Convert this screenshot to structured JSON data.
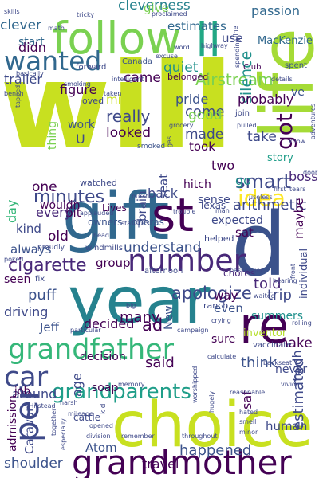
{
  "words": [
    {
      "text": "will",
      "color": "#c8e020",
      "weight": "bold"
    },
    {
      "text": "choice",
      "color": "#c8e020",
      "weight": "normal"
    },
    {
      "text": "gift",
      "color": "#31688e",
      "weight": "normal"
    },
    {
      "text": "year",
      "color": "#26828e",
      "weight": "normal"
    },
    {
      "text": "d",
      "color": "#3b528b",
      "weight": "normal"
    },
    {
      "text": "st",
      "color": "#440154",
      "weight": "normal"
    },
    {
      "text": "life",
      "color": "#a5db36",
      "weight": "normal"
    },
    {
      "text": "re",
      "color": "#440154",
      "weight": "normal"
    },
    {
      "text": "follow",
      "color": "#7ad151",
      "weight": "normal"
    },
    {
      "text": "number",
      "color": "#482878",
      "weight": "normal"
    },
    {
      "text": "grandmother",
      "color": "#440154",
      "weight": "normal"
    },
    {
      "text": "grandfather",
      "color": "#35b779",
      "weight": "normal"
    },
    {
      "text": "wanted",
      "color": "#31688e",
      "weight": "normal"
    },
    {
      "text": "car",
      "color": "#3e4989",
      "weight": "normal"
    },
    {
      "text": "per",
      "color": "#3e4989",
      "weight": "normal"
    },
    {
      "text": "ll",
      "color": "#22a884",
      "weight": "normal"
    },
    {
      "text": "idea",
      "color": "#fde725",
      "weight": "normal"
    },
    {
      "text": "grandparents",
      "color": "#1f9e89",
      "weight": "normal"
    },
    {
      "text": "smart",
      "color": "#3e4989",
      "weight": "normal"
    },
    {
      "text": "cigarette",
      "color": "#482878",
      "weight": "normal"
    },
    {
      "text": "Airstream",
      "color": "#7ad151",
      "weight": "normal"
    },
    {
      "text": "minutes",
      "color": "#3e4989",
      "weight": "normal"
    },
    {
      "text": "apologize",
      "color": "#3e4989",
      "weight": "normal"
    },
    {
      "text": "clever",
      "color": "#31688e",
      "weight": "normal"
    },
    {
      "text": "cleverness",
      "color": "#26828e",
      "weight": "normal"
    },
    {
      "text": "estimates",
      "color": "#31688e",
      "weight": "normal"
    },
    {
      "text": "passion",
      "color": "#31688e",
      "weight": "normal"
    },
    {
      "text": "MacKenzie",
      "color": "#31688e",
      "weight": "normal"
    },
    {
      "text": "didn",
      "color": "#440154",
      "weight": "normal"
    },
    {
      "text": "start",
      "color": "#31688e",
      "weight": "normal"
    },
    {
      "text": "trailer",
      "color": "#3e4989",
      "weight": "normal"
    },
    {
      "text": "quiet",
      "color": "#21918c",
      "weight": "normal"
    },
    {
      "text": "figure",
      "color": "#440154",
      "weight": "normal"
    },
    {
      "text": "came",
      "color": "#440154",
      "weight": "normal"
    },
    {
      "text": "use",
      "color": "#3e4989",
      "weight": "normal"
    },
    {
      "text": "got",
      "color": "#440154",
      "weight": "normal"
    },
    {
      "text": "silence",
      "color": "#21918c",
      "weight": "normal"
    },
    {
      "text": "probably",
      "color": "#440154",
      "weight": "normal"
    },
    {
      "text": "might",
      "color": "#c8e020",
      "weight": "normal"
    },
    {
      "text": "pride",
      "color": "#3b528b",
      "weight": "normal"
    },
    {
      "text": "really",
      "color": "#3e4989",
      "weight": "normal"
    },
    {
      "text": "work",
      "color": "#3b528b",
      "weight": "normal"
    },
    {
      "text": "looked",
      "color": "#440154",
      "weight": "normal"
    },
    {
      "text": "come",
      "color": "#3e4989",
      "weight": "normal"
    },
    {
      "text": "good",
      "color": "#7ad151",
      "weight": "normal"
    },
    {
      "text": "made",
      "color": "#3e4989",
      "weight": "normal"
    },
    {
      "text": "take",
      "color": "#3e4989",
      "weight": "normal"
    },
    {
      "text": "took",
      "color": "#440154",
      "weight": "normal"
    },
    {
      "text": "story",
      "color": "#1f9e89",
      "weight": "normal"
    },
    {
      "text": "boss",
      "color": "#482878",
      "weight": "normal"
    },
    {
      "text": "two",
      "color": "#440154",
      "weight": "normal"
    },
    {
      "text": "back",
      "color": "#3e4989",
      "weight": "normal"
    },
    {
      "text": "go",
      "color": "#21918c",
      "weight": "normal"
    },
    {
      "text": "one",
      "color": "#440154",
      "weight": "normal"
    },
    {
      "text": "day",
      "color": "#35b779",
      "weight": "normal"
    },
    {
      "text": "bit",
      "color": "#440154",
      "weight": "normal"
    },
    {
      "text": "every",
      "color": "#482878",
      "weight": "normal"
    },
    {
      "text": "kind",
      "color": "#3e4989",
      "weight": "normal"
    },
    {
      "text": "old",
      "color": "#440154",
      "weight": "normal"
    },
    {
      "text": "wouldn",
      "color": "#440154",
      "weight": "normal"
    },
    {
      "text": "arithmetic",
      "color": "#3e4989",
      "weight": "normal"
    },
    {
      "text": "expected",
      "color": "#3e4989",
      "weight": "normal"
    },
    {
      "text": "sat",
      "color": "#440154",
      "weight": "normal"
    },
    {
      "text": "always",
      "color": "#3b528b",
      "weight": "normal"
    },
    {
      "text": "understand",
      "color": "#3b528b",
      "weight": "normal"
    },
    {
      "text": "group",
      "color": "#440154",
      "weight": "normal"
    },
    {
      "text": "maybe",
      "color": "#440154",
      "weight": "normal"
    },
    {
      "text": "puff",
      "color": "#3b528b",
      "weight": "normal"
    },
    {
      "text": "trip",
      "color": "#3e4989",
      "weight": "normal"
    },
    {
      "text": "told",
      "color": "#482878",
      "weight": "normal"
    },
    {
      "text": "driving",
      "color": "#3e4989",
      "weight": "normal"
    },
    {
      "text": "decided",
      "color": "#440154",
      "weight": "normal"
    },
    {
      "text": "many",
      "color": "#440154",
      "weight": "normal"
    },
    {
      "text": "way",
      "color": "#440154",
      "weight": "normal"
    },
    {
      "text": "even",
      "color": "#3b528b",
      "weight": "normal"
    },
    {
      "text": "Jeff",
      "color": "#3b528b",
      "weight": "normal"
    },
    {
      "text": "summers",
      "color": "#21918c",
      "weight": "normal"
    },
    {
      "text": "make",
      "color": "#440154",
      "weight": "normal"
    },
    {
      "text": "ad",
      "color": "#440154",
      "weight": "normal"
    },
    {
      "text": "said",
      "color": "#440154",
      "weight": "normal"
    },
    {
      "text": "think",
      "color": "#3b528b",
      "weight": "normal"
    },
    {
      "text": "around",
      "color": "#3e4989",
      "weight": "normal"
    },
    {
      "text": "sure",
      "color": "#440154",
      "weight": "normal"
    },
    {
      "text": "never",
      "color": "#3e4989",
      "weight": "normal"
    },
    {
      "text": "inventor",
      "color": "#b5de2b",
      "weight": "normal"
    },
    {
      "text": "estimated",
      "color": "#3e4989",
      "weight": "normal"
    },
    {
      "text": "much",
      "color": "#3e4989",
      "weight": "normal"
    },
    {
      "text": "saf",
      "color": "#440154",
      "weight": "normal"
    },
    {
      "text": "human",
      "color": "#3e4989",
      "weight": "normal"
    },
    {
      "text": "happened",
      "color": "#3b528b",
      "weight": "normal"
    },
    {
      "text": "travel",
      "color": "#440154",
      "weight": "normal"
    },
    {
      "text": "Atom",
      "color": "#3b528b",
      "weight": "normal"
    },
    {
      "text": "shoulder",
      "color": "#3b528b",
      "weight": "normal"
    },
    {
      "text": "admission",
      "color": "#440154",
      "weight": "normal"
    },
    {
      "text": "Caravan",
      "color": "#3e4989",
      "weight": "normal"
    },
    {
      "text": "decision",
      "color": "#440154",
      "weight": "normal"
    },
    {
      "text": "age",
      "color": "#3e4989",
      "weight": "normal"
    },
    {
      "text": "job",
      "color": "#440154",
      "weight": "normal"
    },
    {
      "text": "seat",
      "color": "#3e4989",
      "weight": "normal"
    },
    {
      "text": "brain",
      "color": "#3e4989",
      "weight": "normal"
    },
    {
      "text": "hitch",
      "color": "#440154",
      "weight": "normal"
    },
    {
      "text": "sense",
      "color": "#3e4989",
      "weight": "normal"
    },
    {
      "text": "ve",
      "color": "#3b528b",
      "weight": "normal"
    },
    {
      "text": "Texas",
      "color": "#3e4989",
      "weight": "normal"
    },
    {
      "text": "individual",
      "color": "#3e4989",
      "weight": "normal"
    },
    {
      "text": "New",
      "color": "#3b528b",
      "weight": "normal"
    },
    {
      "text": "seen",
      "color": "#440154",
      "weight": "normal"
    },
    {
      "text": "soap",
      "color": "#440154",
      "weight": "normal"
    },
    {
      "text": "cattle",
      "color": "#3e4989",
      "weight": "normal"
    },
    {
      "text": "give",
      "color": "#7ad151",
      "weight": "normal"
    },
    {
      "text": "thing",
      "color": "#7ad151",
      "weight": "normal"
    },
    {
      "text": "Lives",
      "color": "#440154",
      "weight": "normal"
    },
    {
      "text": "owners",
      "color": "#3b528b",
      "weight": "normal"
    },
    {
      "text": "operas",
      "color": "#3b528b",
      "weight": "normal"
    },
    {
      "text": "chores",
      "color": "#482878",
      "weight": "normal"
    },
    {
      "text": "ranch",
      "color": "#3e4989",
      "weight": "normal"
    },
    {
      "text": "loved",
      "color": "#3e4989",
      "weight": "normal"
    },
    {
      "text": "forward",
      "color": "#3e4989",
      "weight": "normal"
    },
    {
      "text": "Canada",
      "color": "#3b528b",
      "weight": "normal"
    },
    {
      "text": "Club",
      "color": "#440154",
      "weight": "normal"
    },
    {
      "text": "spent",
      "color": "#3b528b",
      "weight": "normal"
    },
    {
      "text": "belonged",
      "color": "#440154",
      "weight": "normal"
    },
    {
      "text": "join",
      "color": "#3e4989",
      "weight": "normal"
    },
    {
      "text": "watched",
      "color": "#3e4989",
      "weight": "normal"
    },
    {
      "text": "smoked",
      "color": "#3b528b",
      "weight": "normal"
    },
    {
      "text": "grocery",
      "color": "#3e4989",
      "weight": "normal"
    },
    {
      "text": "helped",
      "color": "#3e4989",
      "weight": "normal"
    },
    {
      "text": "fix",
      "color": "#3e4989",
      "weight": "normal"
    },
    {
      "text": "afternoon",
      "color": "#3e4989",
      "weight": "normal"
    },
    {
      "text": "windmills",
      "color": "#3e4989",
      "weight": "normal"
    },
    {
      "text": "vaccinate",
      "color": "#3e4989",
      "weight": "normal"
    },
    {
      "text": "poked",
      "color": "#3e4989",
      "weight": "normal"
    },
    {
      "text": "proudly",
      "color": "#3e4989",
      "weight": "normal"
    },
    {
      "text": "statistics",
      "color": "#3e4989",
      "weight": "normal"
    },
    {
      "text": "trouble",
      "color": "#3e4989",
      "weight": "normal"
    },
    {
      "text": "man",
      "color": "#3e4989",
      "weight": "normal"
    },
    {
      "text": "useless",
      "color": "#3e4989",
      "weight": "normal"
    },
    {
      "text": "first",
      "color": "#3e4989",
      "weight": "normal"
    },
    {
      "text": "tears",
      "color": "#3e4989",
      "weight": "normal"
    },
    {
      "text": "door",
      "color": "#3e4989",
      "weight": "normal"
    },
    {
      "text": "burst",
      "color": "#3e4989",
      "weight": "normal"
    },
    {
      "text": "applauded",
      "color": "#3e4989",
      "weight": "normal"
    },
    {
      "text": "head",
      "color": "#3e4989",
      "weight": "normal"
    },
    {
      "text": "particular",
      "color": "#3e4989",
      "weight": "normal"
    },
    {
      "text": "big",
      "color": "#3e4989",
      "weight": "normal"
    },
    {
      "text": "campaign",
      "color": "#3e4989",
      "weight": "normal"
    },
    {
      "text": "crying",
      "color": "#3e4989",
      "weight": "normal"
    },
    {
      "text": "waited",
      "color": "#3e4989",
      "weight": "normal"
    },
    {
      "text": "passenger",
      "color": "#3e4989",
      "weight": "normal"
    },
    {
      "text": "hearing",
      "color": "#3e4989",
      "weight": "normal"
    },
    {
      "text": "rolling",
      "color": "#3e4989",
      "weight": "normal"
    },
    {
      "text": "backseat",
      "color": "#3e4989",
      "weight": "normal"
    },
    {
      "text": "calculate",
      "color": "#3e4989",
      "weight": "normal"
    },
    {
      "text": "reasonable",
      "color": "#3e4989",
      "weight": "normal"
    },
    {
      "text": "vivid",
      "color": "#3e4989",
      "weight": "normal"
    },
    {
      "text": "harsh",
      "color": "#3e4989",
      "weight": "normal"
    },
    {
      "text": "mileage",
      "color": "#3e4989",
      "weight": "normal"
    },
    {
      "text": "memory",
      "color": "#3e4989",
      "weight": "normal"
    },
    {
      "text": "Instead",
      "color": "#3e4989",
      "weight": "normal"
    },
    {
      "text": "kid",
      "color": "#3e4989",
      "weight": "normal"
    },
    {
      "text": "opened",
      "color": "#3e4989",
      "weight": "normal"
    },
    {
      "text": "worshipped",
      "color": "#3e4989",
      "weight": "normal"
    },
    {
      "text": "hugely",
      "color": "#3e4989",
      "weight": "normal"
    },
    {
      "text": "hated",
      "color": "#3e4989",
      "weight": "normal"
    },
    {
      "text": "smell",
      "color": "#3e4989",
      "weight": "normal"
    },
    {
      "text": "minor",
      "color": "#3e4989",
      "weight": "normal"
    },
    {
      "text": "together",
      "color": "#3e4989",
      "weight": "normal"
    },
    {
      "text": "especially",
      "color": "#3e4989",
      "weight": "normal"
    },
    {
      "text": "division",
      "color": "#3e4989",
      "weight": "normal"
    },
    {
      "text": "remember",
      "color": "#3e4989",
      "weight": "normal"
    },
    {
      "text": "throughout",
      "color": "#3e4989",
      "weight": "normal"
    },
    {
      "text": "skills",
      "color": "#3e4989",
      "weight": "normal"
    },
    {
      "text": "math",
      "color": "#3e4989",
      "weight": "normal"
    },
    {
      "text": "tricky",
      "color": "#3e4989",
      "weight": "normal"
    },
    {
      "text": "proclaimed",
      "color": "#3e4989",
      "weight": "normal"
    },
    {
      "text": "highway",
      "color": "#3e4989",
      "weight": "normal"
    },
    {
      "text": "line",
      "color": "#3e4989",
      "weight": "normal"
    },
    {
      "text": "word",
      "color": "#3e4989",
      "weight": "normal"
    },
    {
      "text": "excuse",
      "color": "#3e4989",
      "weight": "normal"
    },
    {
      "text": "spending",
      "color": "#3e4989",
      "weight": "normal"
    },
    {
      "text": "details",
      "color": "#3e4989",
      "weight": "normal"
    },
    {
      "text": "basically",
      "color": "#3e4989",
      "weight": "normal"
    },
    {
      "text": "smoking",
      "color": "#3e4989",
      "weight": "normal"
    },
    {
      "text": "intelligent",
      "color": "#3e4989",
      "weight": "normal"
    },
    {
      "text": "taken",
      "color": "#3e4989",
      "weight": "normal"
    },
    {
      "text": "bench",
      "color": "#3e4989",
      "weight": "normal"
    },
    {
      "text": "tapped",
      "color": "#3e4989",
      "weight": "normal"
    },
    {
      "text": "adventures",
      "color": "#3e4989",
      "weight": "normal"
    },
    {
      "text": "know",
      "color": "#3e4989",
      "weight": "normal"
    },
    {
      "text": "pulled",
      "color": "#3e4989",
      "weight": "normal"
    },
    {
      "text": "gas",
      "color": "#3e4989",
      "weight": "normal"
    },
    {
      "text": "front",
      "color": "#3e4989",
      "weight": "normal"
    },
    {
      "text": "U",
      "color": "#3e4989",
      "weight": "normal"
    }
  ]
}
